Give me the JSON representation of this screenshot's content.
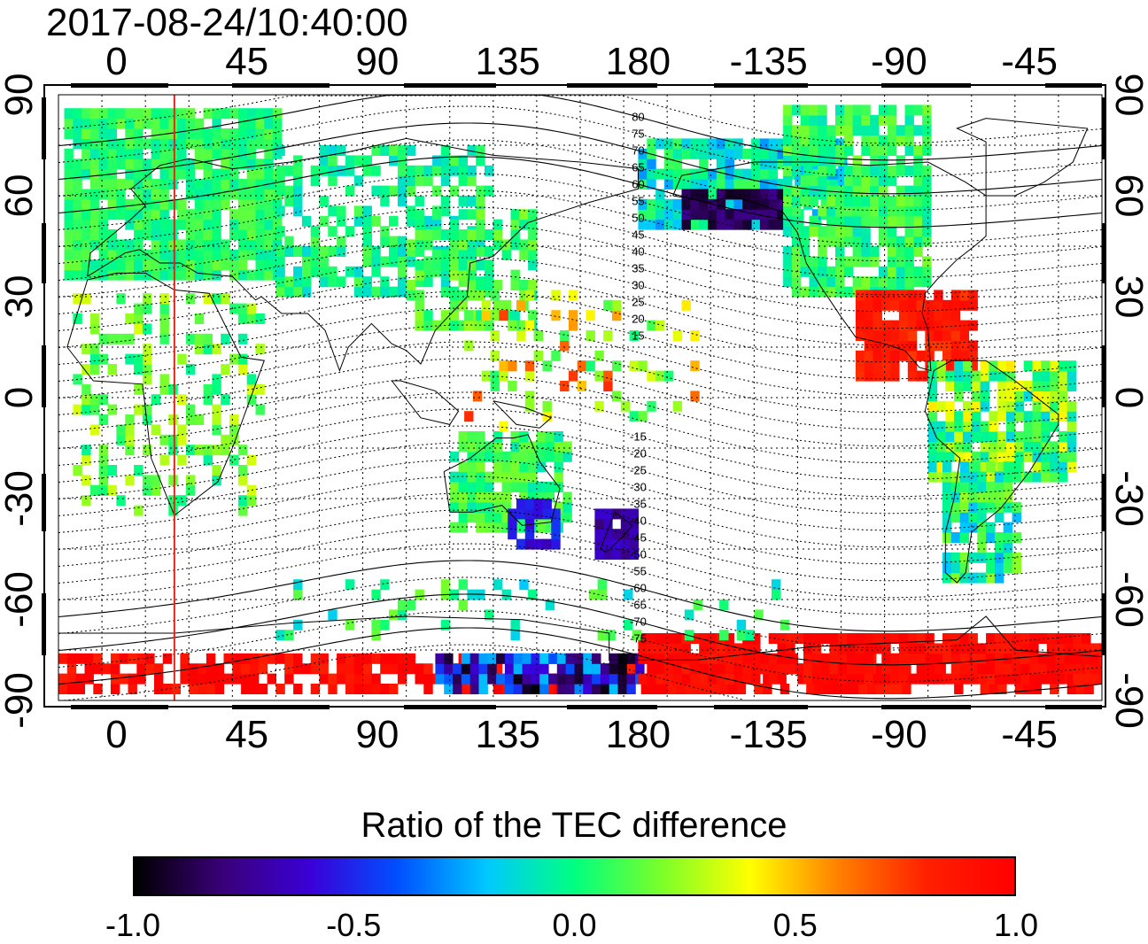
{
  "timestamp": "2017-08-24/10:40:00",
  "map": {
    "lon_top_ticks": [
      "0",
      "45",
      "90",
      "135",
      "180",
      "-135",
      "-90",
      "-45"
    ],
    "lon_bottom_ticks": [
      "0",
      "45",
      "90",
      "135",
      "180",
      "-135",
      "-90",
      "-45"
    ],
    "lat_left_ticks": [
      "90",
      "60",
      "30",
      "0",
      "-30",
      "-60",
      "-90"
    ],
    "lat_right_ticks": [
      "90",
      "60",
      "30",
      "0",
      "-30",
      "-60",
      "-90"
    ],
    "lon_range": [
      -20,
      340
    ],
    "lat_range": [
      -90,
      90
    ],
    "lon_grid_step": 15,
    "lat_grid_step": 15,
    "marker_meridian_lon": 20,
    "marker_color": "#e8261a",
    "magnetic_lat_labels": [
      "80",
      "75",
      "70",
      "65",
      "60",
      "55",
      "50",
      "45",
      "40",
      "35",
      "30",
      "25",
      "20",
      "15",
      "-15",
      "-20",
      "-25",
      "-30",
      "-35",
      "-40",
      "-45",
      "-50",
      "-55",
      "-60",
      "-65",
      "-70",
      "-75"
    ]
  },
  "colorbar": {
    "title": "Ratio of the TEC difference",
    "tick_labels": [
      "-1.0",
      "-0.5",
      "0.0",
      "0.5",
      "1.0"
    ],
    "range": [
      -1.0,
      1.0
    ],
    "colors": [
      "#000000",
      "#3a0078",
      "#3a00d8",
      "#0050ff",
      "#00c8ff",
      "#00ff80",
      "#7cff28",
      "#ffff00",
      "#ff8000",
      "#ff2000",
      "#ff0000"
    ]
  }
}
